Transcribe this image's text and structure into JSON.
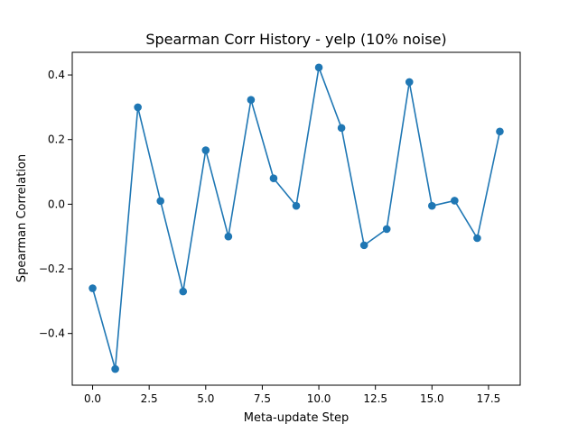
{
  "chart_data": {
    "type": "line",
    "title": "Spearman Corr History - yelp (10% noise)",
    "xlabel": "Meta-update Step",
    "ylabel": "Spearman Correlation",
    "xlim": [
      -0.9,
      18.9
    ],
    "ylim": [
      -0.56,
      0.47
    ],
    "xticks": [
      0,
      2.5,
      5,
      7.5,
      10,
      12.5,
      15,
      17.5
    ],
    "xtick_labels": [
      "0.0",
      "2.5",
      "5.0",
      "7.5",
      "10.0",
      "12.5",
      "15.0",
      "17.5"
    ],
    "yticks": [
      -0.4,
      -0.2,
      0.0,
      0.2,
      0.4
    ],
    "ytick_labels": [
      "−0.4",
      "−0.2",
      "0.0",
      "0.2",
      "0.4"
    ],
    "grid": false,
    "series": [
      {
        "color": "#1f77b4",
        "marker": "circle",
        "x": [
          0,
          1,
          2,
          3,
          4,
          5,
          6,
          7,
          8,
          9,
          10,
          11,
          12,
          13,
          14,
          15,
          16,
          17,
          18
        ],
        "y": [
          -0.26,
          -0.51,
          0.3,
          0.01,
          -0.27,
          0.167,
          -0.1,
          0.323,
          0.08,
          -0.005,
          0.423,
          0.236,
          -0.127,
          -0.077,
          0.378,
          -0.005,
          0.011,
          -0.105,
          0.225
        ]
      }
    ]
  }
}
